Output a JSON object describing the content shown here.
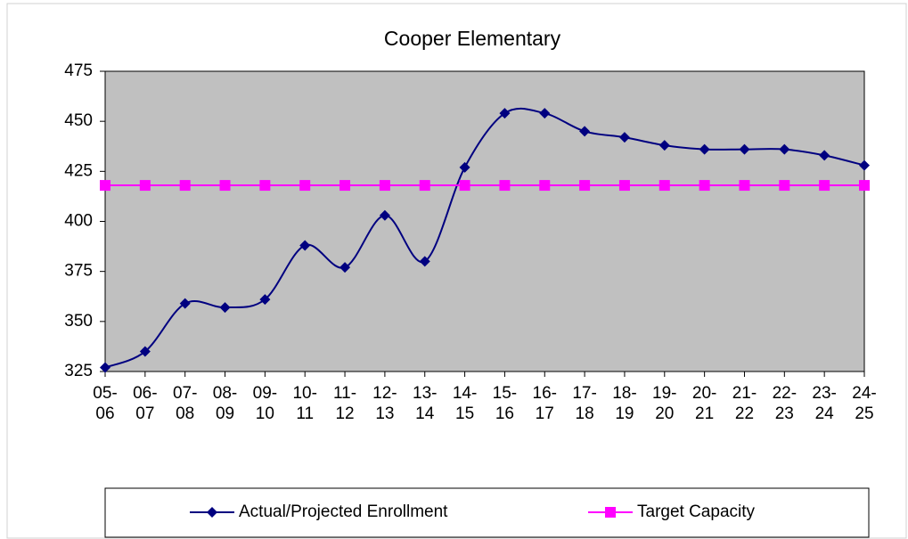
{
  "chart_data": {
    "type": "line",
    "title": "Cooper Elementary",
    "categories": [
      "05-06",
      "06-07",
      "07-08",
      "08-09",
      "09-10",
      "10-11",
      "11-12",
      "12-13",
      "13-14",
      "14-15",
      "15-16",
      "16-17",
      "17-18",
      "18-19",
      "19-20",
      "20-21",
      "21-22",
      "22-23",
      "23-24",
      "24-25"
    ],
    "series": [
      {
        "name": "Actual/Projected Enrollment",
        "color": "#000080",
        "marker": "diamond",
        "smooth": true,
        "values": [
          327,
          335,
          359,
          357,
          361,
          388,
          377,
          403,
          380,
          427,
          454,
          454,
          445,
          442,
          438,
          436,
          436,
          436,
          433,
          428
        ]
      },
      {
        "name": "Target Capacity",
        "color": "#ff00ff",
        "marker": "square",
        "smooth": false,
        "values": [
          418,
          418,
          418,
          418,
          418,
          418,
          418,
          418,
          418,
          418,
          418,
          418,
          418,
          418,
          418,
          418,
          418,
          418,
          418,
          418
        ]
      }
    ],
    "ylim": [
      325,
      475
    ],
    "yticks": [
      325,
      350,
      375,
      400,
      425,
      450,
      475
    ],
    "legend": "bottom",
    "plot_background": "#c0c0c0"
  }
}
